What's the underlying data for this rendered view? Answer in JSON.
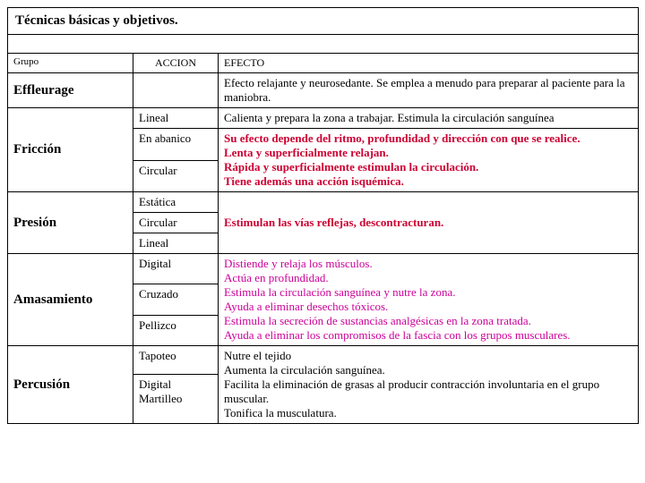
{
  "colors": {
    "accent_red": "#cc0033",
    "accent_magenta": "#cc0099",
    "text": "#000000",
    "background": "#ffffff",
    "border": "#000000"
  },
  "title": "Técnicas básicas y objetivos.",
  "headers": {
    "grupo": "Grupo",
    "accion": "ACCION",
    "efecto": "EFECTO"
  },
  "groups": {
    "effleurage": {
      "name": "Effleurage",
      "effect": "Efecto relajante y neurosedante. Se emplea a menudo para preparar al paciente para la maniobra."
    },
    "friccion": {
      "name": "Fricción",
      "rows": {
        "lineal": {
          "action": "Lineal",
          "effect": "Calienta y prepara la zona a trabajar. Estimula la circulación sanguínea"
        },
        "abanico": {
          "action": "En abanico"
        },
        "circular": {
          "action": "Circular"
        }
      },
      "combined_effect": "Su efecto depende del ritmo, profundidad y dirección con que se realice.\nLenta y superficialmente relajan.\nRápida y superficialmente estimulan la circulación.\nTiene además una acción isquémica."
    },
    "presion": {
      "name": "Presión",
      "rows": {
        "estatica": {
          "action": "Estática"
        },
        "circular": {
          "action": "Circular"
        },
        "lineal": {
          "action": "Lineal"
        }
      },
      "combined_effect": "Estimulan las vías reflejas, descontracturan."
    },
    "amasamiento": {
      "name": "Amasamiento",
      "rows": {
        "digital": {
          "action": "Digital"
        },
        "cruzado": {
          "action": "Cruzado"
        },
        "pellizco": {
          "action": "Pellizco"
        }
      },
      "combined_effect": "Distiende y relaja los músculos.\nActúa en profundidad.\nEstimula la circulación sanguínea y nutre la zona.\nAyuda a eliminar desechos tóxicos.\nEstimula la secreción de sustancias analgésicas en la zona tratada.\nAyuda a eliminar los compromisos de la fascia con los grupos musculares."
    },
    "percusion": {
      "name": "Percusión",
      "rows": {
        "tapoteo": {
          "action": "Tapoteo"
        },
        "digital_martilleo": {
          "action": "Digital Martilleo"
        }
      },
      "combined_effect": "Nutre el tejido\nAumenta la circulación sanguínea.\nFacilita la eliminación de grasas al producir contracción involuntaria en el grupo muscular.\nTonifica la musculatura."
    }
  }
}
